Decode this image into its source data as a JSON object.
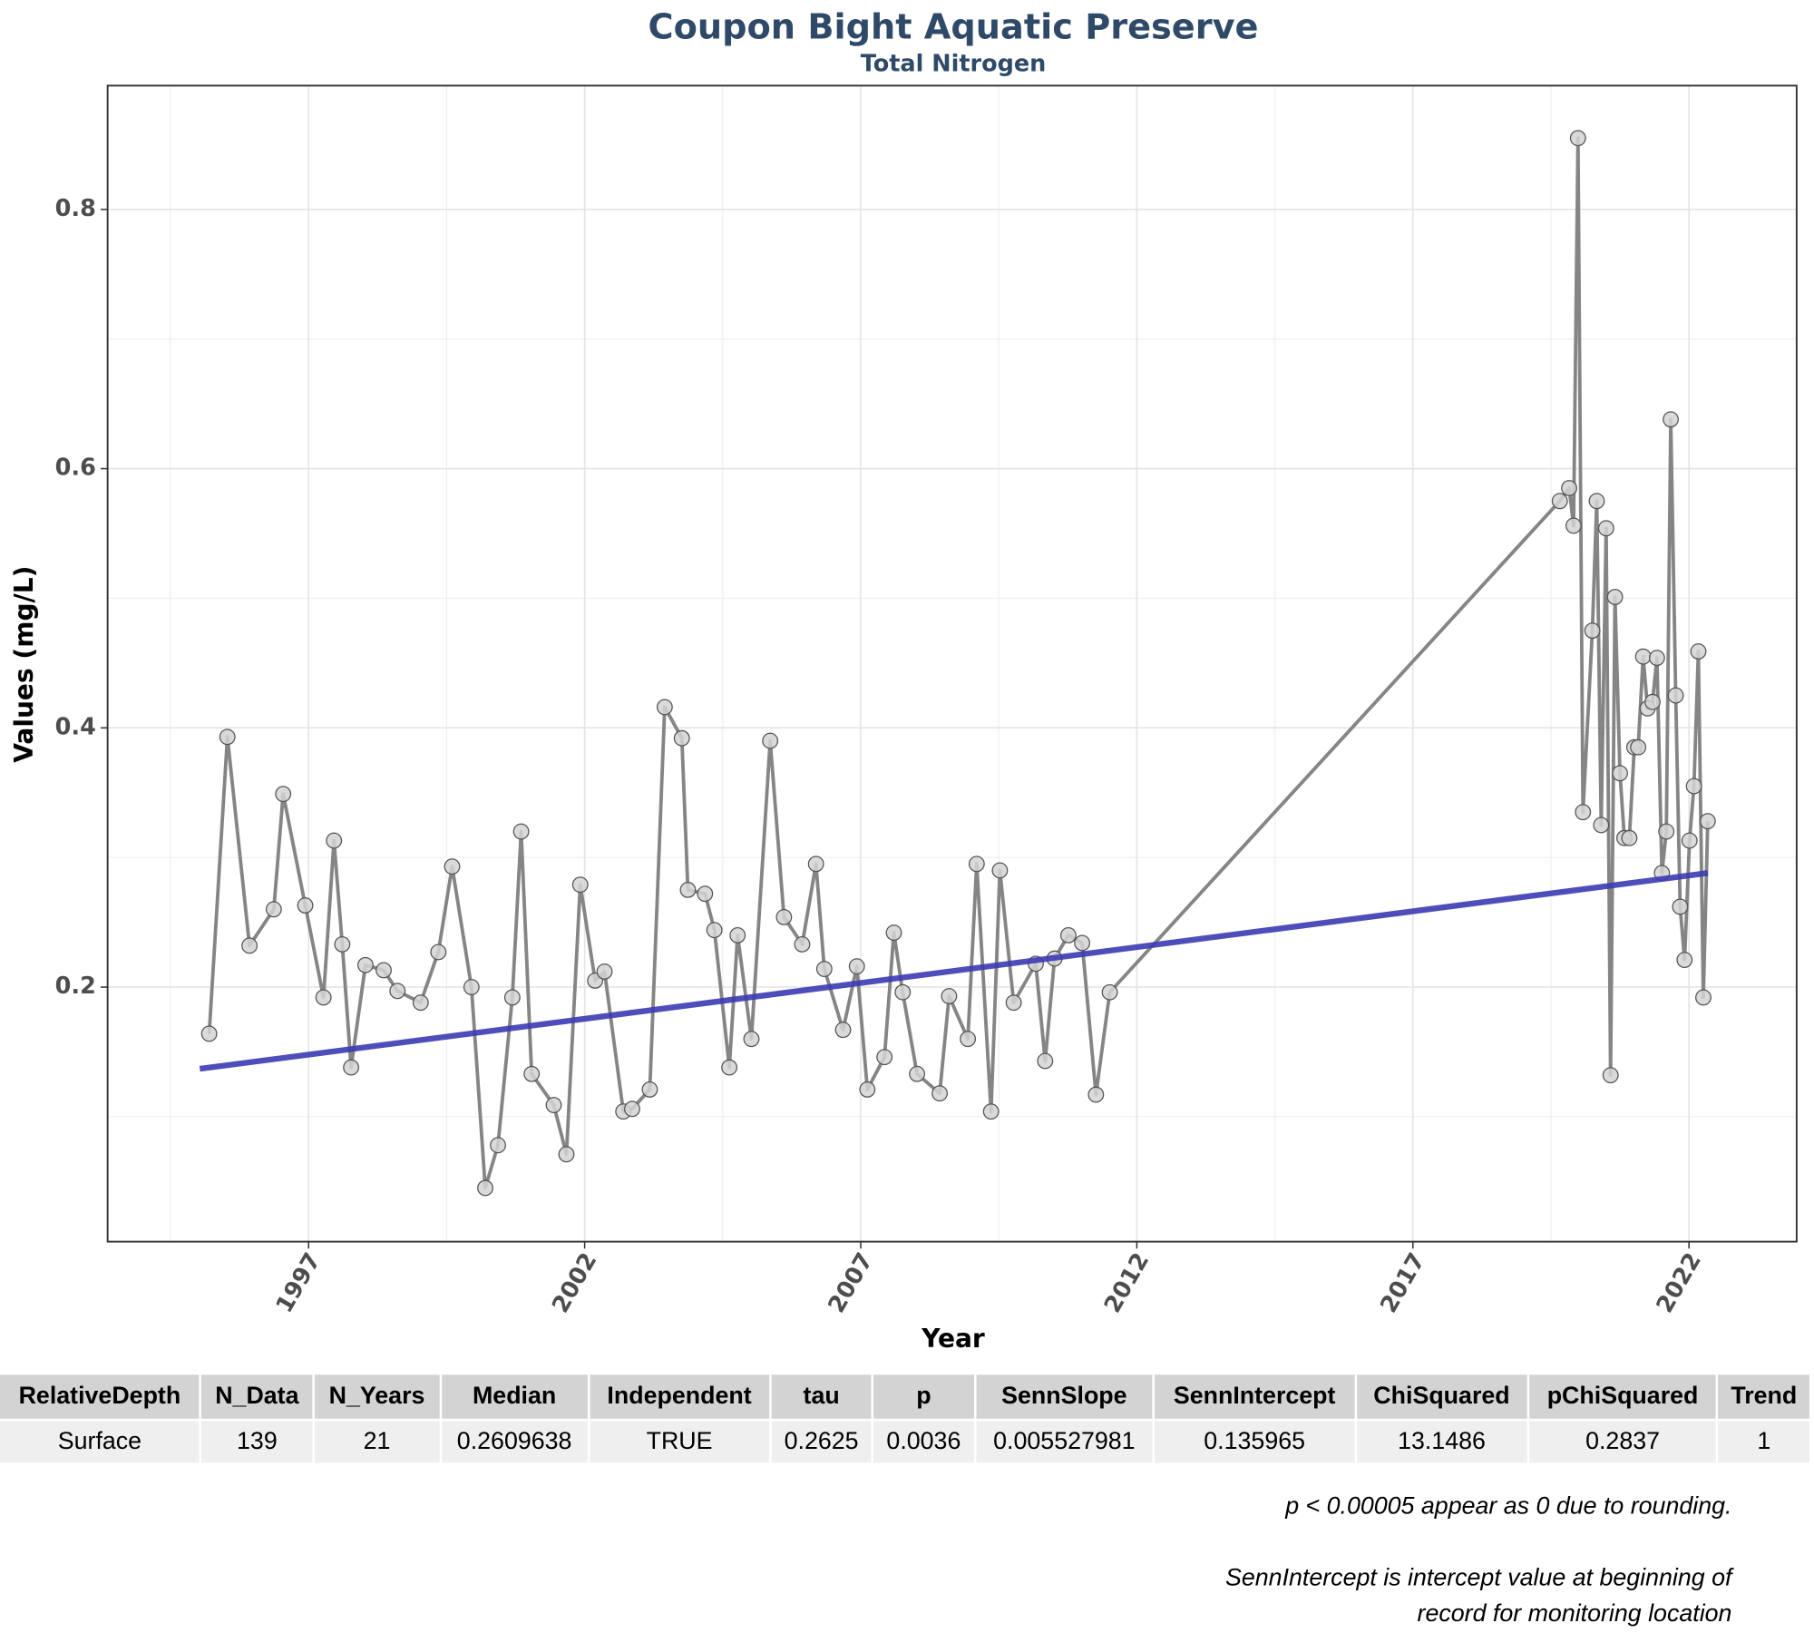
{
  "chart_data": {
    "type": "line",
    "title": "Coupon Bight Aquatic Preserve",
    "subtitle": "Total Nitrogen",
    "xlabel": "Year",
    "ylabel": "Values (mg/L)",
    "xlim": [
      1993.36,
      2023.95
    ],
    "ylim": [
      0.0036,
      0.8955
    ],
    "xticks": [
      1997,
      2002,
      2007,
      2012,
      2017,
      2022
    ],
    "yticks": [
      0.2,
      0.4,
      0.6,
      0.8
    ],
    "grid": true,
    "minor_grid": true,
    "series": [
      {
        "color": "#858585",
        "marker_color": "#d3d3d3",
        "x": [
          1995.2,
          1995.53,
          1995.93,
          1996.37,
          1996.54,
          1996.94,
          1997.27,
          1997.46,
          1997.61,
          1997.77,
          1998.03,
          1998.36,
          1998.61,
          1999.03,
          1999.35,
          1999.6,
          1999.95,
          2000.2,
          2000.43,
          2000.69,
          2000.85,
          2001.04,
          2001.44,
          2001.67,
          2001.92,
          2002.19,
          2002.36,
          2002.7,
          2002.86,
          2003.18,
          2003.45,
          2003.76,
          2003.87,
          2004.18,
          2004.35,
          2004.62,
          2004.77,
          2005.02,
          2005.36,
          2005.61,
          2005.94,
          2006.19,
          2006.34,
          2006.68,
          2006.93,
          2007.12,
          2007.43,
          2007.6,
          2007.76,
          2008.02,
          2008.43,
          2008.6,
          2008.94,
          2009.1,
          2009.36,
          2009.52,
          2009.77,
          2010.17,
          2010.34,
          2010.51,
          2010.76,
          2011.01,
          2011.26,
          2011.51,
          2019.66,
          2019.83,
          2019.91,
          2019.99,
          2020.08,
          2020.25,
          2020.33,
          2020.41,
          2020.5,
          2020.58,
          2020.66,
          2020.75,
          2020.83,
          2020.92,
          2021.01,
          2021.08,
          2021.17,
          2021.25,
          2021.34,
          2021.42,
          2021.51,
          2021.59,
          2021.67,
          2021.76,
          2021.84,
          2021.92,
          2022.01,
          2022.09,
          2022.17,
          2022.26,
          2022.34
        ],
        "values": [
          0.164,
          0.393,
          0.232,
          0.26,
          0.349,
          0.263,
          0.192,
          0.313,
          0.233,
          0.138,
          0.217,
          0.213,
          0.197,
          0.188,
          0.227,
          0.293,
          0.2,
          0.045,
          0.078,
          0.192,
          0.32,
          0.133,
          0.109,
          0.071,
          0.279,
          0.205,
          0.212,
          0.104,
          0.106,
          0.121,
          0.416,
          0.392,
          0.275,
          0.272,
          0.244,
          0.138,
          0.24,
          0.16,
          0.39,
          0.254,
          0.233,
          0.295,
          0.214,
          0.167,
          0.216,
          0.121,
          0.146,
          0.242,
          0.196,
          0.133,
          0.118,
          0.193,
          0.16,
          0.295,
          0.104,
          0.29,
          0.188,
          0.218,
          0.143,
          0.222,
          0.24,
          0.234,
          0.117,
          0.196,
          0.575,
          0.585,
          0.556,
          0.855,
          0.335,
          0.475,
          0.575,
          0.325,
          0.554,
          0.132,
          0.501,
          0.365,
          0.315,
          0.315,
          0.385,
          0.385,
          0.455,
          0.415,
          0.42,
          0.454,
          0.288,
          0.32,
          0.638,
          0.425,
          0.262,
          0.221,
          0.313,
          0.355,
          0.459,
          0.192,
          0.328
        ]
      },
      {
        "color": "#3b3bb3",
        "x": [
          1995.03,
          2022.34
        ],
        "values": [
          0.137,
          0.288
        ]
      }
    ]
  },
  "table": {
    "columns": [
      "RelativeDepth",
      "N_Data",
      "N_Years",
      "Median",
      "Independent",
      "tau",
      "p",
      "SennSlope",
      "SennIntercept",
      "ChiSquared",
      "pChiSquared",
      "Trend"
    ],
    "rows": [
      [
        "Surface",
        139,
        21,
        0.2609638,
        "TRUE",
        0.2625,
        0.0036,
        0.005527981,
        0.135965,
        13.1486,
        0.2837,
        1
      ]
    ]
  },
  "notes": [
    "p < 0.00005 appear as 0 due to rounding.",
    "SennIntercept is intercept value at beginning of record for monitoring location"
  ]
}
